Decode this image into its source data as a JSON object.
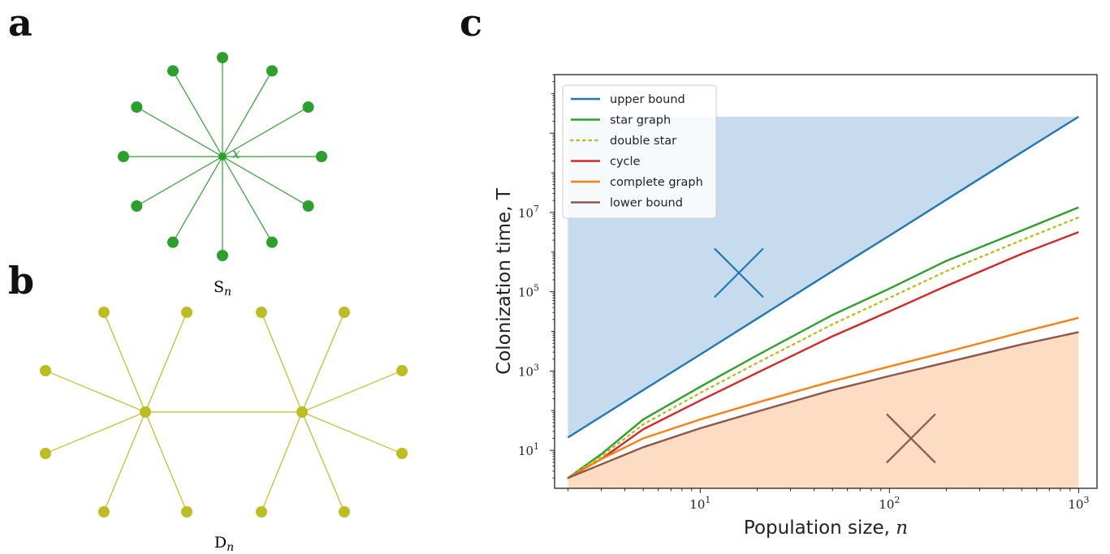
{
  "panels": {
    "a": {
      "letter": "a",
      "label_main": "S",
      "label_sub": "n",
      "center_label": "x",
      "color": "#2ca02c"
    },
    "b": {
      "letter": "b",
      "label_main": "D",
      "label_sub": "n",
      "color": "#bcbd22"
    },
    "c": {
      "letter": "c"
    }
  },
  "chart_data": {
    "type": "line",
    "xscale": "log",
    "yscale": "log",
    "xlim": [
      1.7,
      1250
    ],
    "ylim": [
      1.1,
      30000000000
    ],
    "xlabel": "Population size, ",
    "xlabel_var": "n",
    "ylabel": "Colonization time, T",
    "xticks": [
      {
        "value": 10,
        "base": "10",
        "exp": "1"
      },
      {
        "value": 100,
        "base": "10",
        "exp": "2"
      },
      {
        "value": 1000,
        "base": "10",
        "exp": "3"
      }
    ],
    "yticks": [
      {
        "value": 10,
        "base": "10",
        "exp": "1"
      },
      {
        "value": 1000,
        "base": "10",
        "exp": "3"
      },
      {
        "value": 100000,
        "base": "10",
        "exp": "5"
      },
      {
        "value": 10000000,
        "base": "10",
        "exp": "7"
      }
    ],
    "grid": false,
    "legend_position": "top-left",
    "series": [
      {
        "name": "upper bound",
        "color": "#1f77b4",
        "dash": "solid",
        "x": [
          2,
          5,
          10,
          20,
          50,
          100,
          200,
          500,
          1000
        ],
        "y": [
          21,
          330,
          2600,
          21000,
          330000,
          2600000,
          21000000,
          330000000,
          2600000000
        ]
      },
      {
        "name": "star graph",
        "color": "#2ca02c",
        "dash": "solid",
        "x": [
          2,
          3,
          5,
          10,
          20,
          50,
          100,
          200,
          500,
          1000
        ],
        "y": [
          2,
          8,
          60,
          400,
          2500,
          26000,
          120000,
          600000,
          3500000,
          13500000
        ]
      },
      {
        "name": "double star",
        "color": "#bcbd22",
        "dash": "dotted",
        "x": [
          2,
          3,
          5,
          10,
          20,
          50,
          100,
          200,
          500,
          1000
        ],
        "y": [
          2,
          7,
          45,
          280,
          1600,
          15000,
          70000,
          330000,
          2000000,
          7500000
        ]
      },
      {
        "name": "cycle",
        "color": "#d62728",
        "dash": "solid",
        "x": [
          2,
          3,
          5,
          10,
          20,
          50,
          100,
          200,
          500,
          1000
        ],
        "y": [
          2,
          6,
          34,
          180,
          900,
          7500,
          32000,
          140000,
          900000,
          3200000
        ]
      },
      {
        "name": "complete graph",
        "color": "#ff7f0e",
        "dash": "solid",
        "x": [
          2,
          3,
          5,
          10,
          20,
          50,
          100,
          200,
          500,
          1000
        ],
        "y": [
          2,
          6,
          20,
          60,
          160,
          550,
          1300,
          3000,
          9500,
          22000
        ]
      },
      {
        "name": "lower bound",
        "color": "#8c564b",
        "dash": "solid",
        "x": [
          2,
          5,
          10,
          20,
          50,
          100,
          200,
          500,
          1000
        ],
        "y": [
          2,
          12,
          36,
          95,
          330,
          750,
          1650,
          4700,
          9600
        ]
      }
    ],
    "regions": [
      {
        "fill": "#c6dcee",
        "color_of": "upper bound",
        "marker": {
          "x": 16,
          "y": 300000,
          "color": "#1f77b4"
        }
      },
      {
        "fill": "#fcdcc2",
        "color_of": "lower bound",
        "marker": {
          "x": 130,
          "y": 20,
          "color": "#8c564b"
        }
      }
    ]
  }
}
